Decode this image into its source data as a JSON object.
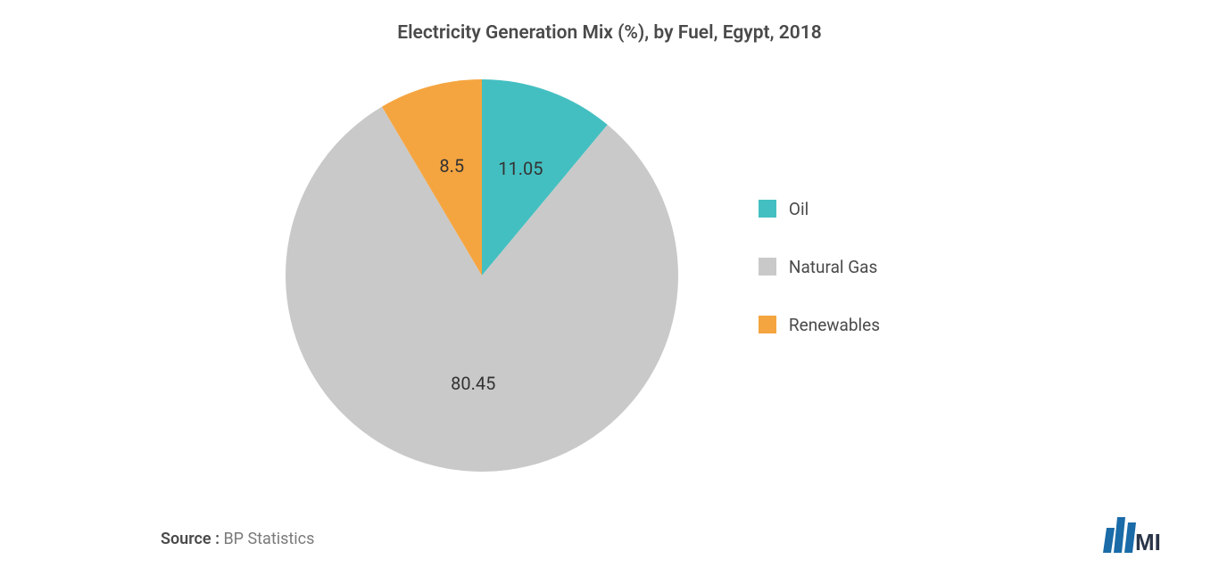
{
  "chart": {
    "type": "pie",
    "title": "Electricity Generation Mix (%), by Fuel, Egypt, 2018",
    "title_fontsize": 21,
    "title_color": "#4a4a4a",
    "background_color": "#ffffff",
    "slices": [
      {
        "label": "Oil",
        "value": 11.05,
        "color": "#44bfc1",
        "display_value": "11.05"
      },
      {
        "label": "Natural Gas",
        "value": 80.45,
        "color": "#c9c9c9",
        "display_value": "80.45"
      },
      {
        "label": "Renewables",
        "value": 8.5,
        "color": "#f5a540",
        "display_value": "8.5"
      }
    ],
    "label_fontsize": 20,
    "label_color": "#333333",
    "legend_fontsize": 19,
    "legend_color": "#4a4a4a",
    "pie_radius": 220,
    "start_angle_deg": 0
  },
  "source": {
    "label": "Source :",
    "value": " BP Statistics"
  },
  "brand": {
    "name": "MI",
    "bar_color": "#1a6ba8",
    "text_color": "#2a3548"
  }
}
